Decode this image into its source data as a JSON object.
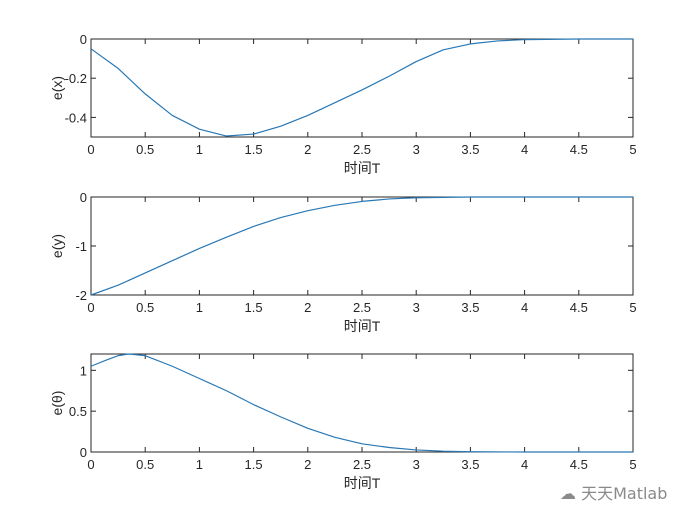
{
  "chart_data": [
    {
      "type": "line",
      "xlabel": "时间T",
      "ylabel": "e(x)",
      "xlim": [
        0,
        5
      ],
      "ylim": [
        -0.5,
        0
      ],
      "xticks": [
        "0",
        "0.5",
        "1",
        "1.5",
        "2",
        "2.5",
        "3",
        "3.5",
        "4",
        "4.5",
        "5"
      ],
      "yticks": [
        -0.4,
        -0.2,
        0
      ],
      "ytick_labels": [
        "-0.4",
        "-0.2",
        "0"
      ],
      "color": "#2878b5",
      "x": [
        0,
        0.25,
        0.5,
        0.75,
        1,
        1.25,
        1.5,
        1.75,
        2,
        2.25,
        2.5,
        2.75,
        3,
        3.25,
        3.5,
        3.75,
        4,
        4.5,
        5
      ],
      "y": [
        -0.05,
        -0.15,
        -0.28,
        -0.39,
        -0.46,
        -0.495,
        -0.485,
        -0.445,
        -0.39,
        -0.325,
        -0.26,
        -0.19,
        -0.115,
        -0.055,
        -0.025,
        -0.01,
        -0.003,
        0,
        0
      ]
    },
    {
      "type": "line",
      "xlabel": "时间T",
      "ylabel": "e(y)",
      "xlim": [
        0,
        5
      ],
      "ylim": [
        -2,
        0
      ],
      "xticks": [
        "0",
        "0.5",
        "1",
        "1.5",
        "2",
        "2.5",
        "3",
        "3.5",
        "4",
        "4.5",
        "5"
      ],
      "yticks": [
        -2,
        -1,
        0
      ],
      "ytick_labels": [
        "-2",
        "-1",
        "0"
      ],
      "color": "#2878b5",
      "x": [
        0,
        0.25,
        0.5,
        0.75,
        1,
        1.25,
        1.5,
        1.75,
        2,
        2.25,
        2.5,
        2.75,
        3,
        3.5,
        4,
        5
      ],
      "y": [
        -2,
        -1.8,
        -1.55,
        -1.3,
        -1.05,
        -0.82,
        -0.6,
        -0.42,
        -0.28,
        -0.17,
        -0.09,
        -0.04,
        -0.015,
        0,
        0,
        0
      ]
    },
    {
      "type": "line",
      "xlabel": "时间T",
      "ylabel": "e(θ)",
      "xlim": [
        0,
        5
      ],
      "ylim": [
        0,
        1.2
      ],
      "xticks": [
        "0",
        "0.5",
        "1",
        "1.5",
        "2",
        "2.5",
        "3",
        "3.5",
        "4",
        "4.5",
        "5"
      ],
      "yticks": [
        0,
        0.5,
        1
      ],
      "ytick_labels": [
        "0",
        "0.5",
        "1"
      ],
      "color": "#2878b5",
      "x": [
        0,
        0.15,
        0.25,
        0.35,
        0.5,
        0.75,
        1,
        1.25,
        1.5,
        1.75,
        2,
        2.25,
        2.5,
        2.75,
        3,
        3.25,
        3.5,
        4,
        5
      ],
      "y": [
        1.05,
        1.13,
        1.18,
        1.2,
        1.18,
        1.05,
        0.9,
        0.75,
        0.58,
        0.43,
        0.29,
        0.18,
        0.1,
        0.055,
        0.025,
        0.01,
        0.003,
        0,
        0
      ]
    }
  ],
  "watermark": "天天Matlab"
}
